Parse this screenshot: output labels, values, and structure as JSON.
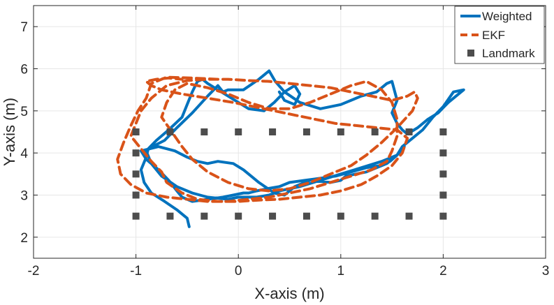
{
  "chart_data": {
    "type": "line",
    "title": "",
    "xlabel": "X-axis (m)",
    "ylabel": "Y-axis (m)",
    "xlim": [
      -2,
      3
    ],
    "ylim": [
      1.5,
      7.5
    ],
    "xticks": [
      "-2",
      "-1",
      "0",
      "1",
      "2",
      "3"
    ],
    "yticks": [
      "2",
      "3",
      "4",
      "5",
      "6",
      "7"
    ],
    "grid": true,
    "legend_position": "top-right",
    "series": [
      {
        "name": "Weighted",
        "kind": "line",
        "style": "solid",
        "color": "#0072BD",
        "x": [
          -0.48,
          -0.5,
          -0.6,
          -0.72,
          -0.85,
          -0.92,
          -0.95,
          -0.9,
          -0.88,
          -0.72,
          -0.6,
          -0.45,
          -0.3,
          -0.2,
          -0.15,
          -0.1,
          0.05,
          0.2,
          0.3,
          0.36,
          0.45,
          0.6,
          0.8,
          1.0,
          1.2,
          1.35,
          1.45,
          1.5,
          1.55,
          1.5,
          1.55,
          1.6,
          1.65,
          1.75,
          1.85,
          1.95,
          2.05,
          2.2,
          2.1,
          2.0,
          1.9,
          1.8,
          1.7,
          1.6,
          1.55,
          1.48,
          1.38,
          1.25,
          1.1,
          0.95,
          0.8,
          0.65,
          0.5,
          0.4,
          0.28,
          0.18,
          0.1,
          0.05,
          -0.05,
          -0.15,
          -0.3,
          -0.45,
          -0.55,
          -0.6,
          -0.68,
          -0.78,
          -0.9,
          -0.95,
          -0.78,
          -0.62,
          -0.5,
          -0.4,
          -0.3,
          -0.2,
          -0.05,
          0.05,
          0.2,
          0.35,
          0.45,
          0.55,
          0.7,
          0.9,
          1.0,
          1.05,
          1.15,
          1.25,
          1.35,
          1.45,
          1.5,
          1.55,
          1.58,
          1.62,
          1.55,
          1.4,
          1.2,
          1.0,
          0.8,
          0.6,
          0.4,
          0.3,
          0.18,
          0.0,
          -0.1,
          -0.3,
          -0.45,
          -0.6,
          -0.75,
          -0.85,
          -0.9,
          -0.8,
          -0.68,
          -0.55,
          -0.5,
          -0.45,
          -0.4,
          -0.35,
          -0.3,
          -0.1,
          0.1,
          0.25,
          0.35,
          0.45,
          0.55,
          0.6,
          0.55,
          0.45,
          0.4
        ],
        "y": [
          2.25,
          2.45,
          2.65,
          2.85,
          3.05,
          3.3,
          3.6,
          3.9,
          4.1,
          4.3,
          4.6,
          4.95,
          5.35,
          5.6,
          5.45,
          5.5,
          5.5,
          5.75,
          5.95,
          5.7,
          5.45,
          5.2,
          5.05,
          5.15,
          5.35,
          5.45,
          5.65,
          5.7,
          5.25,
          4.95,
          4.7,
          4.55,
          4.45,
          4.6,
          4.8,
          4.95,
          5.2,
          5.5,
          5.45,
          5.1,
          4.85,
          4.55,
          4.35,
          4.15,
          3.95,
          3.8,
          3.7,
          3.65,
          3.55,
          3.45,
          3.4,
          3.35,
          3.3,
          3.2,
          3.15,
          3.1,
          3.05,
          3.05,
          3.0,
          2.95,
          2.9,
          2.85,
          2.95,
          3.1,
          3.35,
          3.6,
          3.85,
          4.05,
          4.15,
          4.05,
          3.9,
          3.8,
          3.75,
          3.8,
          3.75,
          3.6,
          3.3,
          3.05,
          3.0,
          3.2,
          3.35,
          3.3,
          3.35,
          3.45,
          3.5,
          3.55,
          3.65,
          3.75,
          3.85,
          3.95,
          4.05,
          4.15,
          3.95,
          3.8,
          3.65,
          3.5,
          3.35,
          3.2,
          3.1,
          3.0,
          2.95,
          2.95,
          2.9,
          2.95,
          3.05,
          3.2,
          3.45,
          3.75,
          4.05,
          4.3,
          4.55,
          4.85,
          5.15,
          5.45,
          5.7,
          5.75,
          5.65,
          5.35,
          5.05,
          5.0,
          5.2,
          5.45,
          5.6,
          5.4,
          5.15,
          5.25,
          5.45
        ]
      },
      {
        "name": "EKF",
        "kind": "line",
        "style": "dashed",
        "color": "#D95319",
        "x": [
          -0.2,
          -0.45,
          -0.7,
          -0.85,
          -0.9,
          -0.98,
          -1.05,
          -1.12,
          -1.18,
          -1.15,
          -1.05,
          -0.9,
          -0.7,
          -0.5,
          -0.3,
          -0.1,
          0.1,
          0.3,
          0.5,
          0.7,
          0.9,
          1.1,
          1.3,
          1.45,
          1.5,
          1.55,
          1.55,
          1.5,
          1.4,
          1.25,
          1.1,
          0.9,
          0.7,
          0.5,
          0.3,
          0.1,
          -0.1,
          -0.3,
          -0.5,
          -0.62,
          -0.7,
          -0.75,
          -0.65,
          -0.55,
          -0.45,
          -0.3,
          -0.1,
          0.1,
          0.3,
          0.5,
          0.7,
          0.9,
          1.1,
          1.25,
          1.4,
          1.55,
          1.7,
          1.75,
          1.72,
          1.65,
          1.5,
          1.3,
          1.1,
          0.9,
          0.7,
          0.5,
          0.3,
          0.1,
          -0.1,
          -0.3,
          -0.5,
          -0.7,
          -0.85,
          -0.95,
          -1.0,
          -1.05,
          -0.95,
          -0.85,
          -0.75,
          -0.7,
          -0.55,
          -0.4,
          -0.2,
          0.0,
          0.2,
          0.4,
          0.6,
          0.8,
          1.0,
          1.2,
          1.35,
          1.5,
          1.6,
          1.65,
          1.55,
          1.35,
          1.15,
          0.95,
          0.75,
          0.55,
          0.35,
          0.15,
          -0.05,
          -0.3,
          -0.55,
          -0.75,
          -0.85,
          -0.9,
          -0.8,
          -0.68,
          -0.55
        ],
        "y": [
          5.75,
          5.78,
          5.8,
          5.65,
          5.3,
          5.0,
          4.65,
          4.25,
          3.85,
          3.5,
          3.25,
          3.05,
          2.95,
          2.9,
          2.85,
          2.85,
          2.9,
          2.95,
          3.05,
          3.15,
          3.3,
          3.45,
          3.6,
          3.8,
          4.05,
          4.4,
          4.8,
          5.2,
          5.5,
          5.7,
          5.6,
          5.4,
          5.2,
          5.05,
          5.05,
          5.2,
          5.4,
          5.55,
          5.65,
          5.5,
          5.2,
          4.85,
          4.5,
          4.15,
          3.85,
          3.55,
          3.3,
          3.15,
          3.1,
          3.15,
          3.3,
          3.5,
          3.7,
          3.95,
          4.25,
          4.6,
          5.0,
          5.3,
          5.45,
          5.35,
          5.25,
          5.35,
          5.45,
          5.55,
          5.6,
          5.65,
          5.7,
          5.72,
          5.75,
          5.75,
          5.72,
          5.6,
          5.3,
          5.0,
          4.7,
          4.4,
          4.1,
          3.8,
          3.55,
          3.3,
          3.05,
          2.9,
          2.85,
          2.85,
          2.88,
          2.9,
          2.95,
          3.0,
          3.1,
          3.25,
          3.45,
          3.7,
          4.0,
          4.35,
          4.55,
          4.6,
          4.65,
          4.7,
          4.8,
          4.9,
          5.0,
          5.1,
          5.2,
          5.3,
          5.4,
          5.5,
          5.6,
          5.7,
          5.75,
          5.78,
          5.75
        ]
      },
      {
        "name": "Landmark",
        "kind": "marker",
        "marker": "square",
        "color": "#4D4D4D",
        "x": [
          -1,
          -0.6667,
          -0.3333,
          0,
          0.3333,
          0.6667,
          1,
          1.3333,
          1.6667,
          2,
          -1,
          -0.6667,
          -0.3333,
          0,
          0.3333,
          0.6667,
          1,
          1.3333,
          1.6667,
          2,
          -1,
          -1,
          -1,
          2,
          2,
          2
        ],
        "y": [
          4.5,
          4.5,
          4.5,
          4.5,
          4.5,
          4.5,
          4.5,
          4.5,
          4.5,
          4.5,
          2.5,
          2.5,
          2.5,
          2.5,
          2.5,
          2.5,
          2.5,
          2.5,
          2.5,
          2.5,
          4.0,
          3.5,
          3.0,
          4.0,
          3.5,
          3.0
        ]
      }
    ]
  }
}
